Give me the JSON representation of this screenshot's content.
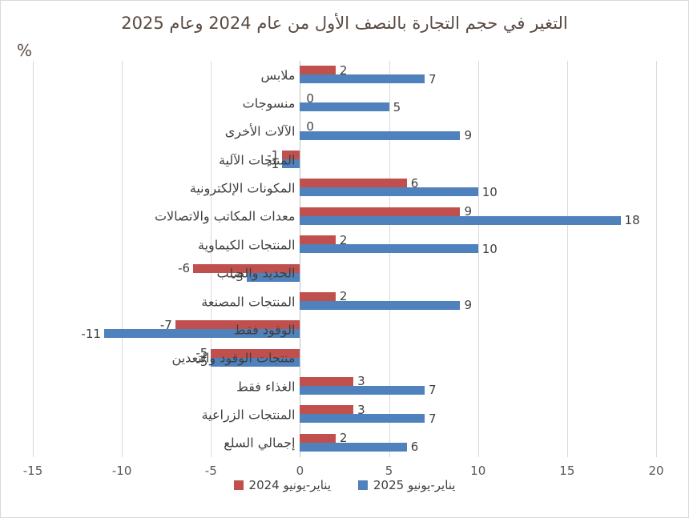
{
  "title": "التغير في حجم التجارة بالنصف الأول من عام 2024 وعام 2025",
  "axis_unit_label": "%",
  "chart_data": {
    "type": "bar",
    "orientation": "horizontal",
    "title": "التغير في حجم التجارة بالنصف الأول من عام 2024 وعام 2025",
    "xlabel": "%",
    "categories": [
      "ملابس",
      "منسوجات",
      "الآلات الأخرى",
      "المنتجات الآلية",
      "المكونات الإلكترونية",
      "معدات المكاتب والاتصالات",
      "المنتجات الكيماوية",
      "الحديد والصلب",
      "المنتجات المصنعة",
      "الوقود فقط",
      "منتجات الوقود والتعدين",
      "الغذاء فقط",
      "المنتجات الزراعية",
      "إجمالي السلع"
    ],
    "series": [
      {
        "name": "يناير-يونيو 2024",
        "color": "#C0504D",
        "values": [
          2,
          0,
          0,
          -1,
          6,
          9,
          2,
          -6,
          2,
          -7,
          -5,
          3,
          3,
          2
        ]
      },
      {
        "name": "يناير-يونيو 2025",
        "color": "#4F81BD",
        "values": [
          7,
          5,
          9,
          -1,
          10,
          18,
          10,
          -3,
          9,
          -11,
          -5,
          7,
          7,
          6
        ]
      }
    ],
    "xlim": [
      -15,
      20
    ],
    "xticks": [
      -15,
      -10,
      -5,
      0,
      5,
      10,
      15,
      20
    ],
    "grid": "vertical",
    "legend_position": "bottom",
    "colors": {
      "grid": "#d9d9d9",
      "zero_axis": "#bfbfbf",
      "title_text": "#594a42",
      "tick_text": "#595959",
      "value_text": "#404040",
      "category_text": "#404040"
    }
  }
}
